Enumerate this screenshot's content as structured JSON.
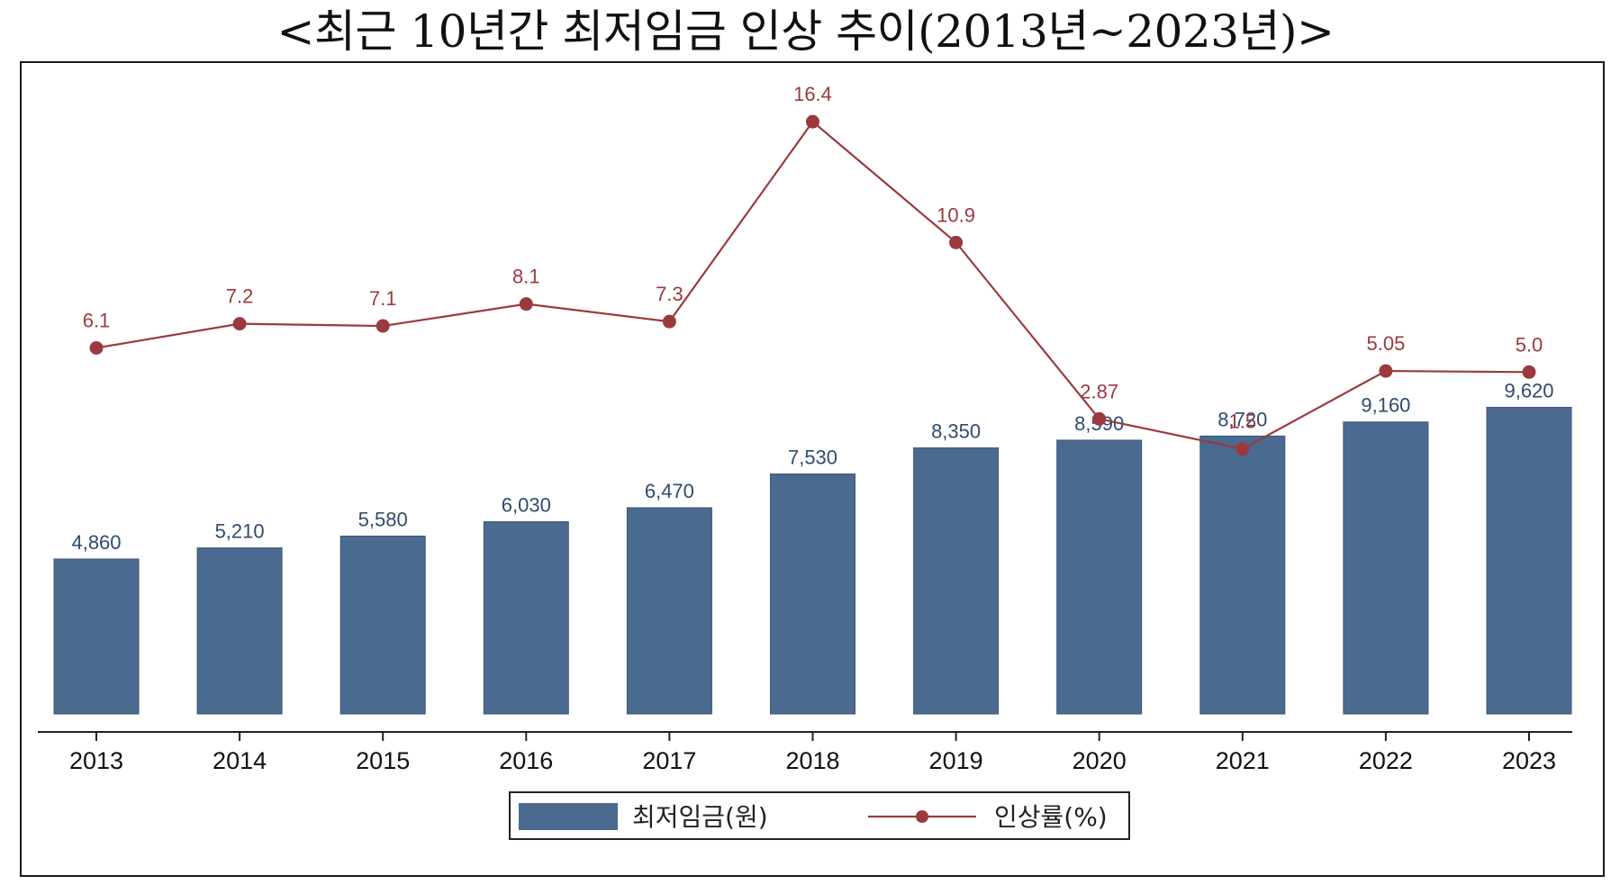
{
  "title": "<최근 10년간 최저임금 인상 추이(2013년~2023년)>",
  "chart_data": {
    "type": "bar",
    "categories": [
      "2013",
      "2014",
      "2015",
      "2016",
      "2017",
      "2018",
      "2019",
      "2020",
      "2021",
      "2022",
      "2023"
    ],
    "series": [
      {
        "name": "최저임금(원)",
        "type": "bar",
        "values": [
          4860,
          5210,
          5580,
          6030,
          6470,
          7530,
          8350,
          8590,
          8720,
          9160,
          9620
        ],
        "labels": [
          "4,860",
          "5,210",
          "5,580",
          "6,030",
          "6,470",
          "7,530",
          "8,350",
          "8,590",
          "8,720",
          "9,160",
          "9,620"
        ],
        "color": "#4a6b8f"
      },
      {
        "name": "인상률(%)",
        "type": "line",
        "values": [
          6.1,
          7.2,
          7.1,
          8.1,
          7.3,
          16.4,
          10.9,
          2.87,
          1.5,
          5.05,
          5.0
        ],
        "labels": [
          "6.1",
          "7.2",
          "7.1",
          "8.1",
          "7.3",
          "16.4",
          "10.9",
          "2.87",
          "1.5",
          "5.05",
          "5.0"
        ],
        "color": "#9b3a3e"
      }
    ],
    "legend_position": "bottom",
    "grid": false
  }
}
